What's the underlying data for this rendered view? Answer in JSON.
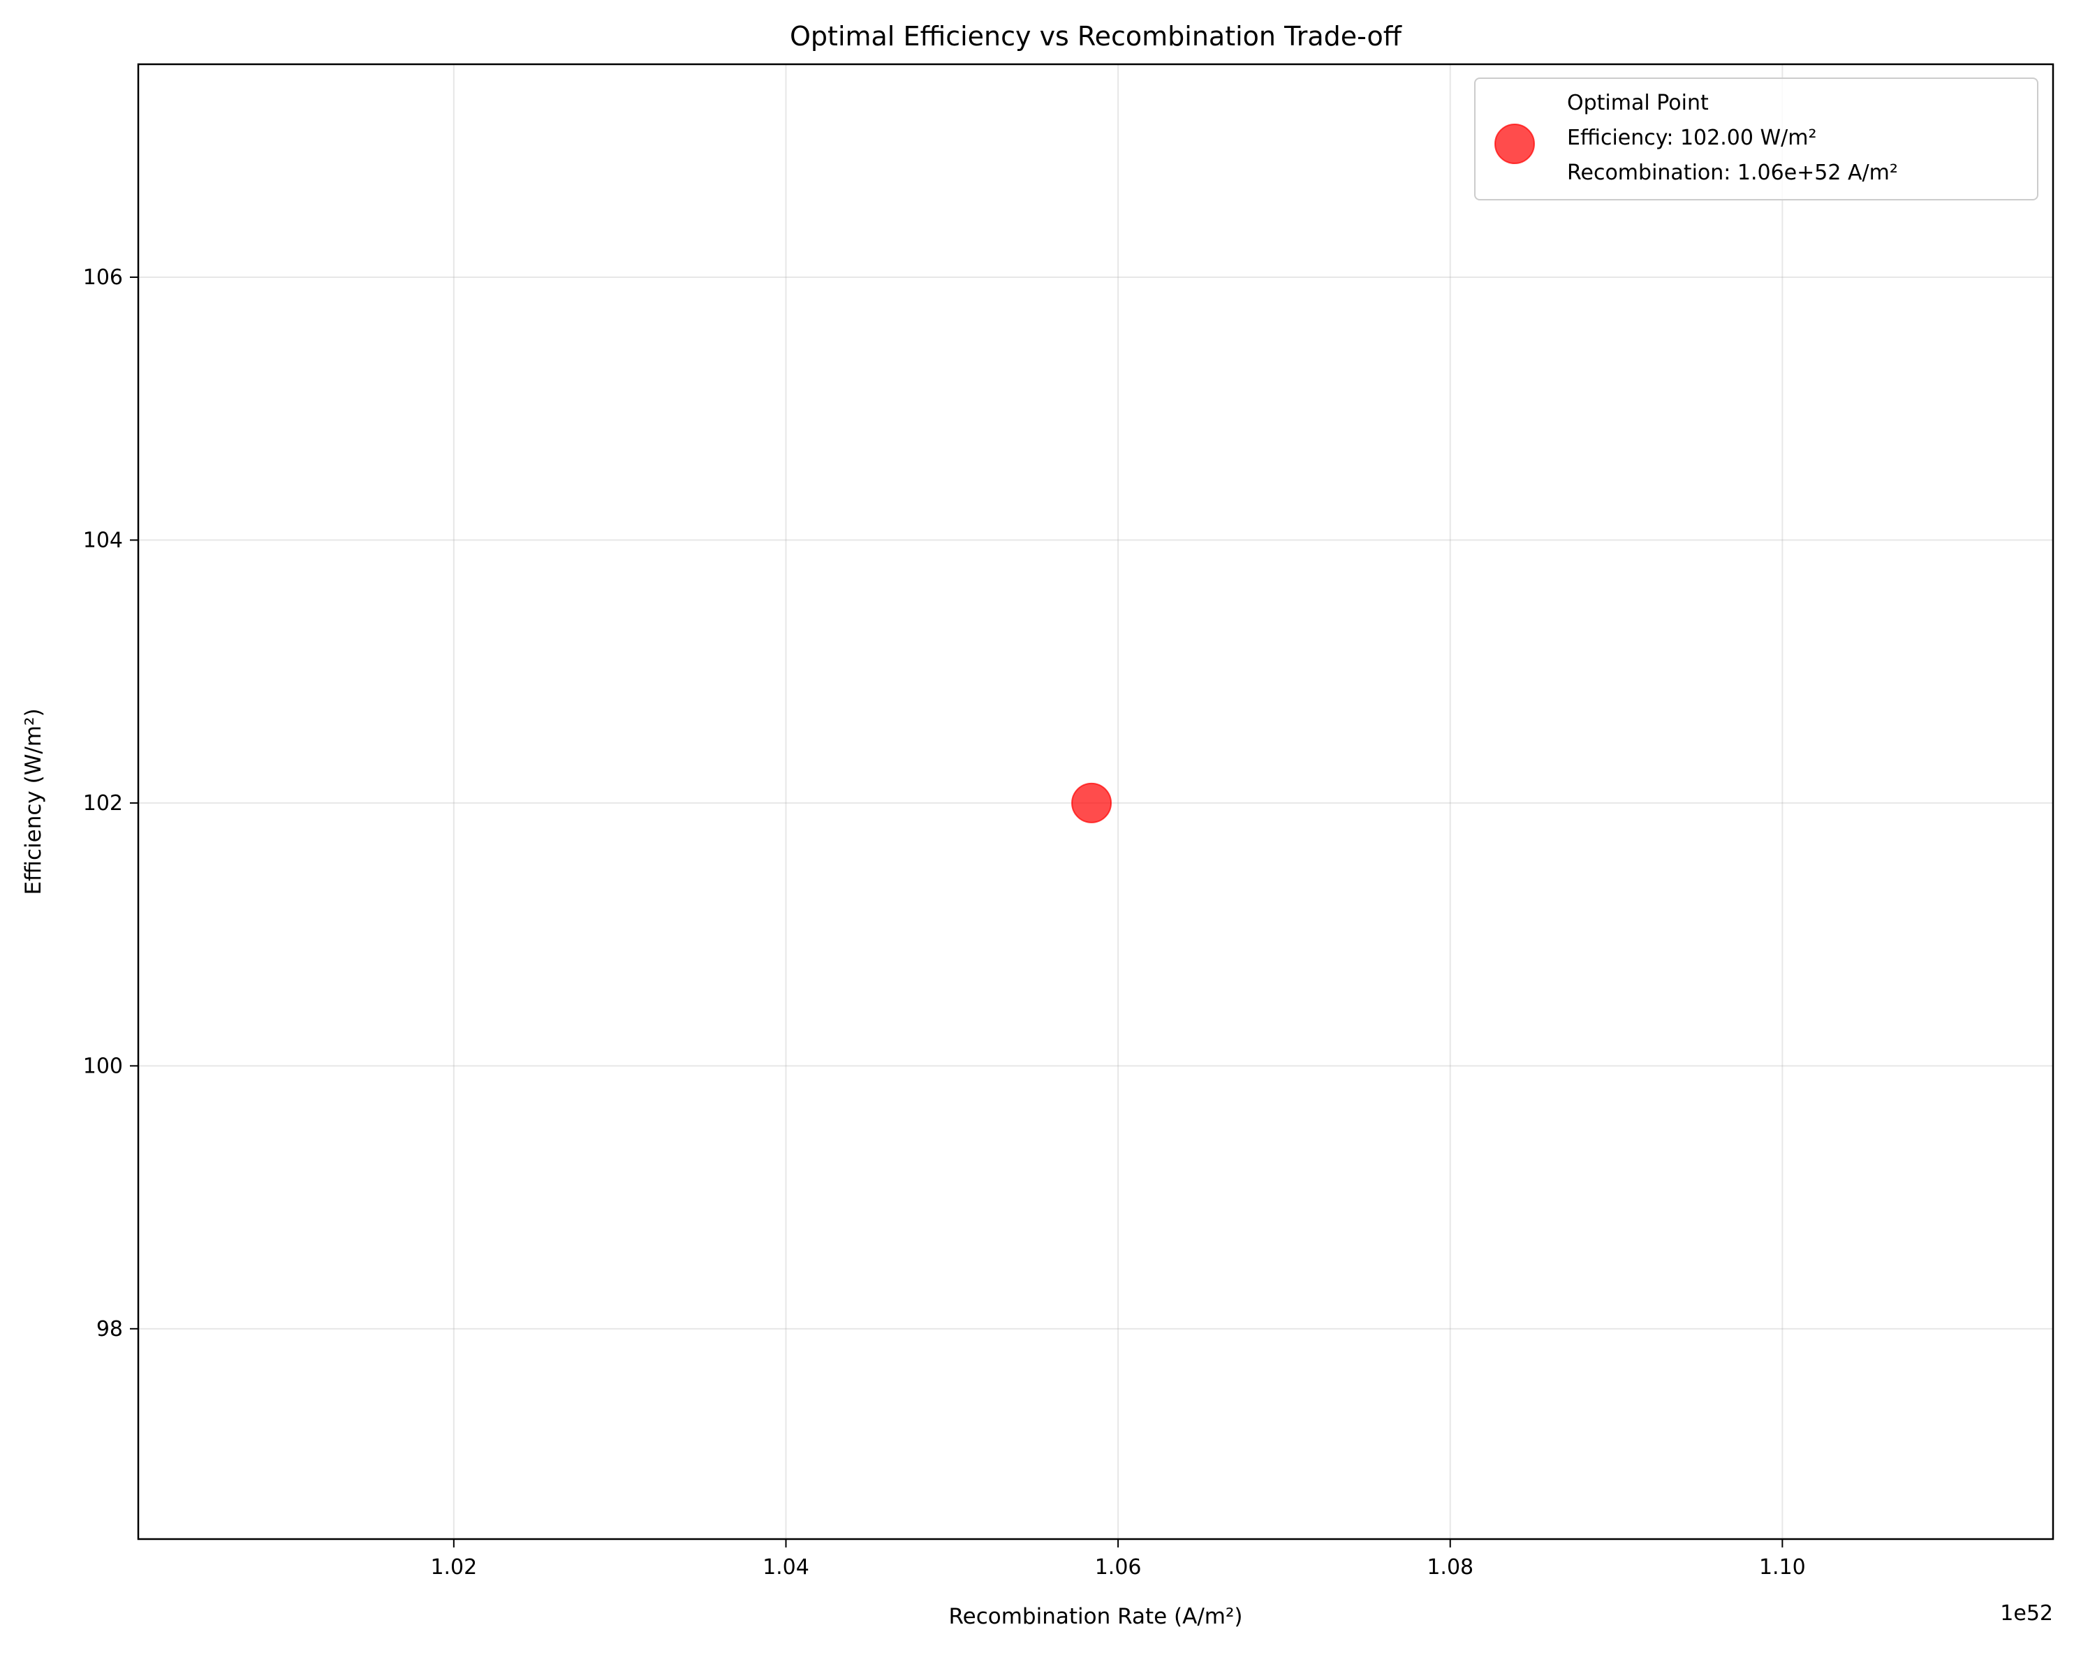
{
  "chart_data": {
    "type": "scatter",
    "title": "Optimal Efficiency vs Recombination Trade-off",
    "xlabel": "Recombination Rate (A/m²)",
    "ylabel": "Efficiency (W/m²)",
    "x_offset_label": "1e52",
    "xlim": [
      1.001,
      1.1163
    ],
    "ylim": [
      96.4,
      107.62
    ],
    "x_ticks": [
      1.02,
      1.04,
      1.06,
      1.08,
      1.1
    ],
    "x_tick_labels": [
      "1.02",
      "1.04",
      "1.06",
      "1.08",
      "1.10"
    ],
    "y_ticks": [
      98,
      100,
      102,
      104,
      106
    ],
    "y_tick_labels": [
      "98",
      "100",
      "102",
      "104",
      "106"
    ],
    "grid": true,
    "legend_position": "top-right",
    "series": [
      {
        "name": "Optimal Point",
        "color": "#ff0000",
        "points": [
          {
            "x": 1.0584,
            "y": 102.0
          }
        ]
      }
    ],
    "legend": {
      "title_line": "Optimal Point",
      "lines": [
        "Efficiency: 102.00 W/m²",
        "Recombination: 1.06e+52 A/m²"
      ]
    }
  }
}
